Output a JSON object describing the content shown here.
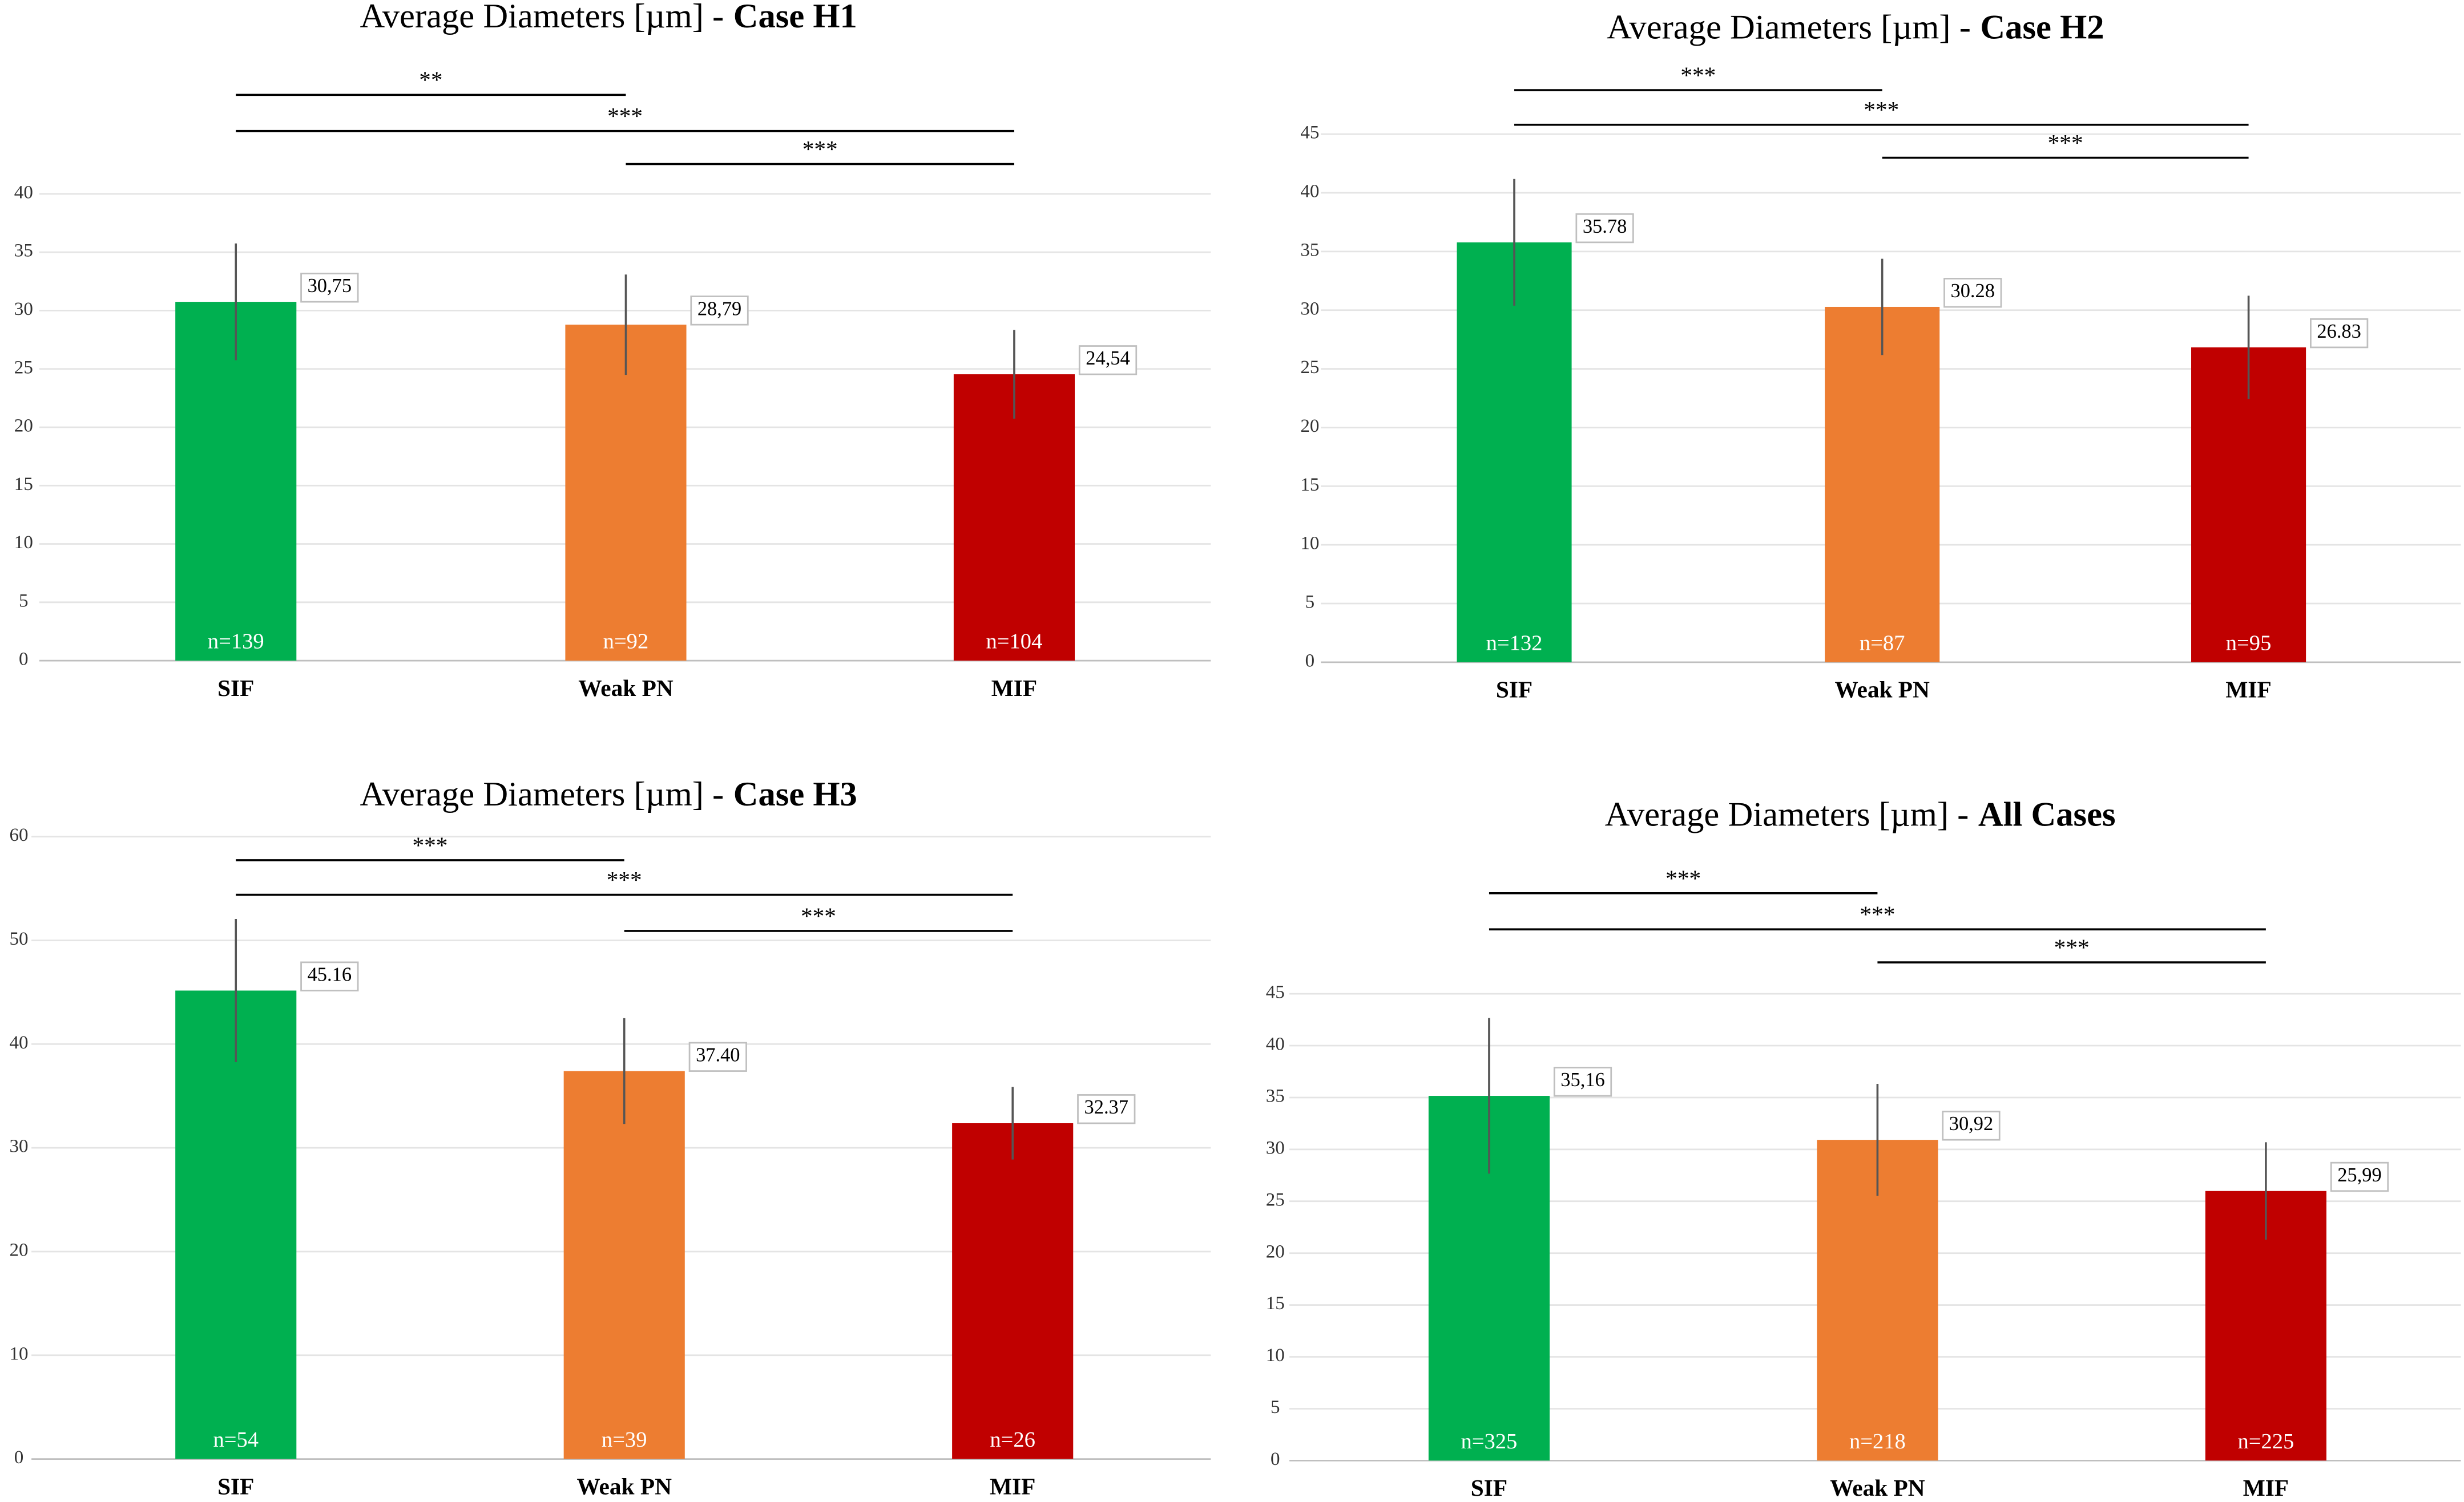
{
  "chart_data": [
    {
      "type": "bar",
      "title": "Average Diameters [µm] -",
      "title_bold": "Case H1",
      "categories": [
        "SIF",
        "Weak PN",
        "MIF"
      ],
      "colors": [
        "#00b050",
        "#ed7d31",
        "#c00000"
      ],
      "series": [
        {
          "values": [
            30.75,
            28.79,
            24.54
          ],
          "value_labels": [
            "30,75",
            "28,79",
            "24,54"
          ],
          "errors": [
            5.0,
            4.3,
            3.8
          ],
          "bar_labels": [
            "n=139",
            "n=92",
            "n=104"
          ]
        }
      ],
      "ylim": [
        0,
        40
      ],
      "yticks": [
        0,
        5,
        10,
        15,
        20,
        25,
        30,
        35,
        40
      ],
      "grid": true,
      "significance": [
        {
          "label": "**",
          "pair": [
            0,
            1
          ]
        },
        {
          "label": "***",
          "pair": [
            0,
            2
          ]
        },
        {
          "label": "***",
          "pair": [
            1,
            2
          ]
        }
      ]
    },
    {
      "type": "bar",
      "title": "Average Diameters [µm] -",
      "title_bold": "Case H2",
      "categories": [
        "SIF",
        "Weak PN",
        "MIF"
      ],
      "colors": [
        "#00b050",
        "#ed7d31",
        "#c00000"
      ],
      "series": [
        {
          "values": [
            35.78,
            30.28,
            26.83
          ],
          "value_labels": [
            "35.78",
            "30.28",
            "26.83"
          ],
          "errors": [
            5.4,
            4.1,
            4.4
          ],
          "bar_labels": [
            "n=132",
            "n=87",
            "n=95"
          ]
        }
      ],
      "ylim": [
        0,
        45
      ],
      "yticks": [
        0,
        5,
        10,
        15,
        20,
        25,
        30,
        35,
        40,
        45
      ],
      "grid": true,
      "significance": [
        {
          "label": "***",
          "pair": [
            0,
            1
          ]
        },
        {
          "label": "***",
          "pair": [
            0,
            2
          ]
        },
        {
          "label": "***",
          "pair": [
            1,
            2
          ]
        }
      ]
    },
    {
      "type": "bar",
      "title": "Average Diameters [µm] -",
      "title_bold": "Case H3",
      "categories": [
        "SIF",
        "Weak PN",
        "MIF"
      ],
      "colors": [
        "#00b050",
        "#ed7d31",
        "#c00000"
      ],
      "series": [
        {
          "values": [
            45.16,
            37.4,
            32.37
          ],
          "value_labels": [
            "45.16",
            "37.40",
            "32.37"
          ],
          "errors": [
            6.9,
            5.1,
            3.5
          ],
          "bar_labels": [
            "n=54",
            "n=39",
            "n=26"
          ]
        }
      ],
      "ylim": [
        0,
        60
      ],
      "yticks": [
        0,
        10,
        20,
        30,
        40,
        50,
        60
      ],
      "grid": true,
      "significance": [
        {
          "label": "***",
          "pair": [
            0,
            1
          ]
        },
        {
          "label": "***",
          "pair": [
            0,
            2
          ]
        },
        {
          "label": "***",
          "pair": [
            1,
            2
          ]
        }
      ]
    },
    {
      "type": "bar",
      "title": "Average Diameters [µm] -",
      "title_bold": "All Cases",
      "categories": [
        "SIF",
        "Weak PN",
        "MIF"
      ],
      "colors": [
        "#00b050",
        "#ed7d31",
        "#c00000"
      ],
      "series": [
        {
          "values": [
            35.16,
            30.92,
            25.99
          ],
          "value_labels": [
            "35,16",
            "30,92",
            "25,99"
          ],
          "errors": [
            7.5,
            5.4,
            4.7
          ],
          "bar_labels": [
            "n=325",
            "n=218",
            "n=225"
          ]
        }
      ],
      "ylim": [
        0,
        45
      ],
      "yticks": [
        0,
        5,
        10,
        15,
        20,
        25,
        30,
        35,
        40,
        45
      ],
      "grid": true,
      "significance": [
        {
          "label": "***",
          "pair": [
            0,
            1
          ]
        },
        {
          "label": "***",
          "pair": [
            0,
            2
          ]
        },
        {
          "label": "***",
          "pair": [
            1,
            2
          ]
        }
      ]
    }
  ]
}
